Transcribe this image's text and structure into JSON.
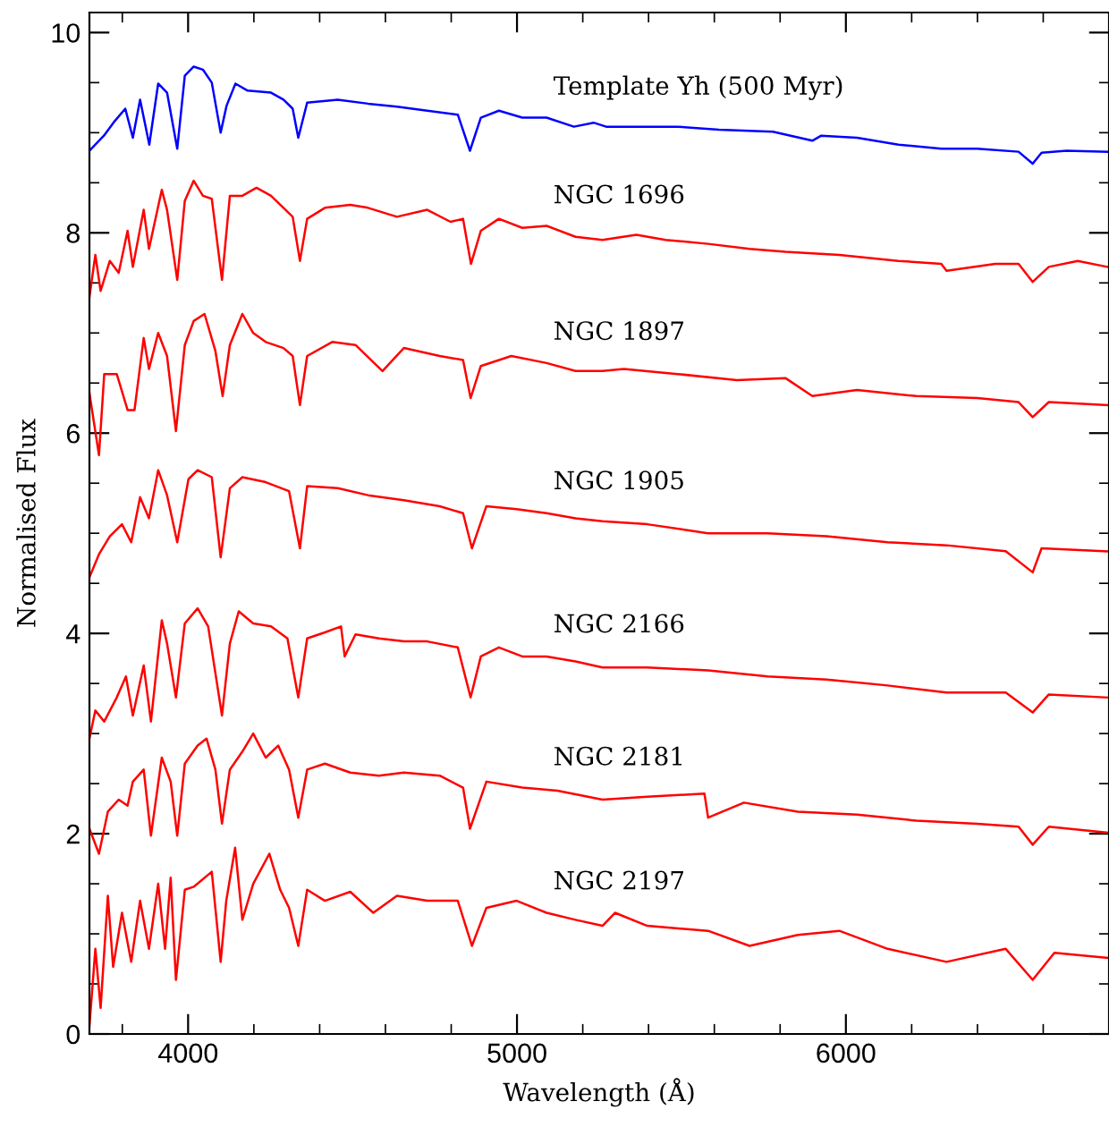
{
  "chart_data": {
    "type": "line",
    "xlabel": "Wavelength (Å)",
    "ylabel": "Normalised Flux",
    "xlim": [
      3700,
      6800
    ],
    "ylim": [
      0,
      10.2
    ],
    "xticks": [
      4000,
      5000,
      6000
    ],
    "yticks": [
      0,
      2,
      4,
      6,
      8,
      10
    ],
    "grid": false,
    "legend": false,
    "marker": "none",
    "line_style": "solid",
    "series": [
      {
        "name": "Template Yh (500 Myr)",
        "color": "#0000ff",
        "x": [
          3700,
          3744,
          3773,
          3809,
          3832,
          3854,
          3882,
          3909,
          3936,
          3967,
          3990,
          4017,
          4045,
          4072,
          4099,
          4117,
          4144,
          4181,
          4252,
          4290,
          4318,
          4335,
          4362,
          4455,
          4547,
          4635,
          4727,
          4820,
          4857,
          4890,
          4945,
          5016,
          5090,
          5173,
          5233,
          5271,
          5363,
          5488,
          5614,
          5778,
          5898,
          5925,
          6034,
          6160,
          6290,
          6399,
          6525,
          6568,
          6595,
          6671,
          6795
        ],
        "values": [
          8.82,
          8.97,
          9.1,
          9.24,
          8.95,
          9.33,
          8.88,
          9.49,
          9.4,
          8.84,
          9.57,
          9.66,
          9.63,
          9.5,
          9.0,
          9.27,
          9.49,
          9.42,
          9.4,
          9.33,
          9.24,
          8.95,
          9.3,
          9.33,
          9.29,
          9.26,
          9.22,
          9.18,
          8.82,
          9.15,
          9.22,
          9.15,
          9.15,
          9.06,
          9.1,
          9.06,
          9.06,
          9.06,
          9.03,
          9.01,
          8.92,
          8.97,
          8.95,
          8.88,
          8.84,
          8.84,
          8.81,
          8.69,
          8.8,
          8.82,
          8.81
        ]
      },
      {
        "name": "NGC 1696",
        "color": "#ff0000",
        "x": [
          3700,
          3718,
          3734,
          3762,
          3789,
          3816,
          3832,
          3865,
          3881,
          3920,
          3936,
          3967,
          3990,
          4017,
          4045,
          4072,
          4103,
          4127,
          4165,
          4208,
          4252,
          4290,
          4318,
          4340,
          4362,
          4416,
          4493,
          4547,
          4635,
          4727,
          4798,
          4836,
          4860,
          4890,
          4945,
          5016,
          5090,
          5178,
          5260,
          5363,
          5452,
          5581,
          5707,
          5816,
          5980,
          6160,
          6290,
          6306,
          6454,
          6525,
          6568,
          6617,
          6705,
          6795
        ],
        "values": [
          7.36,
          7.78,
          7.42,
          7.72,
          7.6,
          8.02,
          7.66,
          8.23,
          7.84,
          8.43,
          8.23,
          7.53,
          8.32,
          8.52,
          8.37,
          8.34,
          7.53,
          8.37,
          8.37,
          8.45,
          8.37,
          8.25,
          8.16,
          7.72,
          8.14,
          8.25,
          8.28,
          8.25,
          8.16,
          8.23,
          8.11,
          8.14,
          7.69,
          8.02,
          8.14,
          8.05,
          8.07,
          7.96,
          7.93,
          7.98,
          7.93,
          7.89,
          7.84,
          7.81,
          7.78,
          7.72,
          7.69,
          7.62,
          7.69,
          7.69,
          7.51,
          7.66,
          7.72,
          7.66
        ]
      },
      {
        "name": "NGC 1897",
        "color": "#ff0000",
        "x": [
          3700,
          3729,
          3745,
          3783,
          3816,
          3837,
          3865,
          3881,
          3909,
          3936,
          3963,
          3990,
          4017,
          4050,
          4083,
          4105,
          4127,
          4165,
          4198,
          4236,
          4290,
          4318,
          4340,
          4362,
          4438,
          4509,
          4591,
          4656,
          4765,
          4836,
          4859,
          4890,
          4983,
          5090,
          5178,
          5260,
          5325,
          5488,
          5669,
          5816,
          5898,
          6034,
          6214,
          6399,
          6525,
          6568,
          6617,
          6795
        ],
        "values": [
          6.4,
          5.78,
          6.59,
          6.59,
          6.23,
          6.23,
          6.95,
          6.64,
          7.0,
          6.77,
          6.02,
          6.88,
          7.12,
          7.19,
          6.82,
          6.37,
          6.88,
          7.19,
          7.0,
          6.91,
          6.85,
          6.77,
          6.28,
          6.77,
          6.91,
          6.88,
          6.62,
          6.85,
          6.77,
          6.73,
          6.35,
          6.67,
          6.77,
          6.7,
          6.62,
          6.62,
          6.64,
          6.59,
          6.53,
          6.55,
          6.37,
          6.43,
          6.37,
          6.35,
          6.31,
          6.16,
          6.31,
          6.28
        ]
      },
      {
        "name": "NGC 1905",
        "color": "#ff0000",
        "x": [
          3700,
          3729,
          3762,
          3799,
          3827,
          3854,
          3881,
          3909,
          3936,
          3967,
          4001,
          4029,
          4072,
          4099,
          4127,
          4165,
          4236,
          4307,
          4340,
          4362,
          4455,
          4547,
          4656,
          4765,
          4836,
          4863,
          4907,
          4999,
          5090,
          5178,
          5260,
          5396,
          5581,
          5762,
          5941,
          6127,
          6306,
          6486,
          6568,
          6595,
          6795
        ],
        "values": [
          4.56,
          4.79,
          4.97,
          5.09,
          4.91,
          5.36,
          5.15,
          5.63,
          5.38,
          4.91,
          5.54,
          5.63,
          5.56,
          4.76,
          5.45,
          5.56,
          5.51,
          5.42,
          4.85,
          5.47,
          5.45,
          5.38,
          5.33,
          5.27,
          5.2,
          4.85,
          5.27,
          5.24,
          5.2,
          5.15,
          5.12,
          5.09,
          5.0,
          5.0,
          4.97,
          4.91,
          4.88,
          4.82,
          4.61,
          4.85,
          4.82
        ]
      },
      {
        "name": "NGC 2166",
        "color": "#ff0000",
        "x": [
          3700,
          3718,
          3745,
          3783,
          3811,
          3832,
          3865,
          3887,
          3920,
          3936,
          3963,
          3990,
          4029,
          4061,
          4103,
          4127,
          4154,
          4198,
          4252,
          4302,
          4335,
          4362,
          4416,
          4465,
          4476,
          4509,
          4580,
          4656,
          4727,
          4820,
          4859,
          4890,
          4945,
          5016,
          5090,
          5178,
          5260,
          5396,
          5581,
          5762,
          5941,
          6127,
          6306,
          6486,
          6568,
          6617,
          6795
        ],
        "values": [
          2.95,
          3.23,
          3.12,
          3.36,
          3.57,
          3.18,
          3.68,
          3.12,
          4.13,
          3.9,
          3.36,
          4.1,
          4.25,
          4.07,
          3.18,
          3.9,
          4.22,
          4.1,
          4.07,
          3.95,
          3.36,
          3.95,
          4.01,
          4.07,
          3.77,
          3.99,
          3.95,
          3.92,
          3.92,
          3.86,
          3.36,
          3.77,
          3.86,
          3.77,
          3.77,
          3.72,
          3.66,
          3.66,
          3.63,
          3.57,
          3.54,
          3.48,
          3.41,
          3.41,
          3.21,
          3.39,
          3.36
        ]
      },
      {
        "name": "NGC 2181",
        "color": "#ff0000",
        "x": [
          3700,
          3729,
          3756,
          3789,
          3816,
          3832,
          3865,
          3887,
          3920,
          3947,
          3967,
          3990,
          4029,
          4056,
          4083,
          4103,
          4127,
          4165,
          4198,
          4236,
          4274,
          4307,
          4335,
          4362,
          4416,
          4493,
          4580,
          4656,
          4765,
          4836,
          4857,
          4907,
          5016,
          5123,
          5260,
          5396,
          5570,
          5581,
          5690,
          5854,
          6034,
          6214,
          6399,
          6525,
          6568,
          6617,
          6795
        ],
        "values": [
          2.05,
          1.8,
          2.22,
          2.34,
          2.28,
          2.52,
          2.64,
          1.98,
          2.76,
          2.52,
          1.98,
          2.7,
          2.88,
          2.95,
          2.64,
          2.1,
          2.64,
          2.82,
          3.0,
          2.76,
          2.88,
          2.64,
          2.16,
          2.64,
          2.7,
          2.61,
          2.58,
          2.61,
          2.58,
          2.46,
          2.05,
          2.52,
          2.46,
          2.43,
          2.34,
          2.37,
          2.4,
          2.16,
          2.31,
          2.22,
          2.19,
          2.13,
          2.1,
          2.07,
          1.89,
          2.07,
          2.01
        ]
      },
      {
        "name": "NGC 2197",
        "color": "#ff0000",
        "x": [
          3700,
          3718,
          3734,
          3756,
          3772,
          3799,
          3827,
          3854,
          3881,
          3909,
          3930,
          3947,
          3963,
          3990,
          4017,
          4072,
          4099,
          4116,
          4143,
          4165,
          4198,
          4247,
          4280,
          4307,
          4335,
          4362,
          4416,
          4493,
          4563,
          4635,
          4727,
          4820,
          4863,
          4907,
          4999,
          5090,
          5178,
          5260,
          5298,
          5396,
          5581,
          5707,
          5854,
          5980,
          6127,
          6306,
          6486,
          6568,
          6634,
          6795
        ],
        "values": [
          0.08,
          0.85,
          0.26,
          1.38,
          0.67,
          1.21,
          0.72,
          1.33,
          0.85,
          1.5,
          0.85,
          1.56,
          0.54,
          1.44,
          1.47,
          1.62,
          0.72,
          1.33,
          1.86,
          1.14,
          1.5,
          1.8,
          1.44,
          1.26,
          0.88,
          1.44,
          1.33,
          1.42,
          1.21,
          1.38,
          1.33,
          1.33,
          0.88,
          1.26,
          1.33,
          1.21,
          1.14,
          1.08,
          1.21,
          1.08,
          1.03,
          0.88,
          0.99,
          1.03,
          0.85,
          0.72,
          0.85,
          0.54,
          0.81,
          0.76
        ]
      }
    ]
  }
}
